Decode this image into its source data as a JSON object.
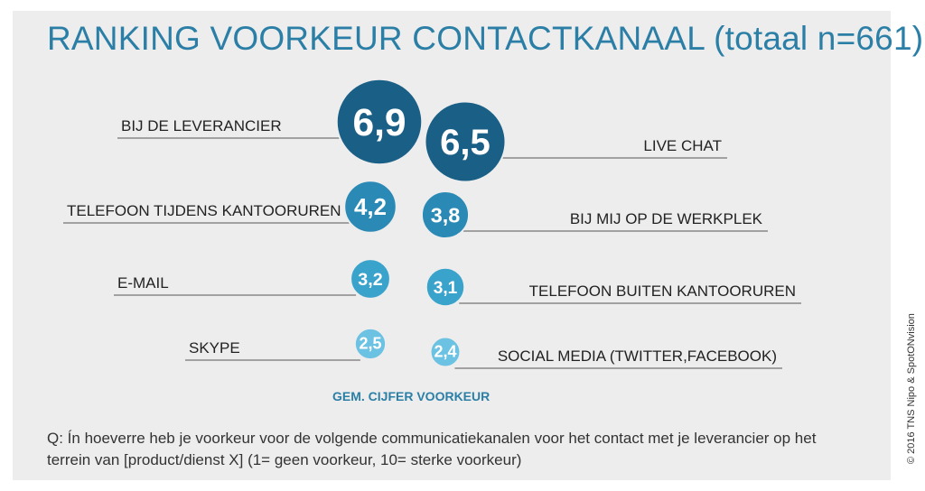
{
  "title": "RANKING VOORKEUR CONTACTKANAAL (totaal n=661)",
  "xlabel": "GEM. CIJFER VOORKEUR",
  "question": "Q: Ín hoeverre heb je voorkeur voor de volgende communicatiekanalen voor het contact met je leverancier op het terrein van [product/dienst X] (1= geen voorkeur, 10= sterke voorkeur)",
  "copyright": "© 2016 TNS Nipo & SpotONvision",
  "colors": {
    "dark": "#1a5f86",
    "medium": "#2b8ab5",
    "mid_light": "#3aa3cc",
    "light": "#6cc2e3",
    "title": "#2b7fa6"
  },
  "chart_data": {
    "type": "bubble",
    "title": "RANKING VOORKEUR CONTACTKANAAL (totaal n=661)",
    "xlabel": "GEM. CIJFER VOORKEUR",
    "scale": "1= geen voorkeur, 10= sterke voorkeur",
    "rows": [
      {
        "left": {
          "label": "BIJ DE LEVERANCIER",
          "value": 6.9,
          "display": "6,9"
        },
        "right": {
          "label": "LIVE CHAT",
          "value": 6.5,
          "display": "6,5"
        }
      },
      {
        "left": {
          "label": "TELEFOON TIJDENS KANTOORUREN",
          "value": 4.2,
          "display": "4,2"
        },
        "right": {
          "label": "BIJ MIJ OP DE WERKPLEK",
          "value": 3.8,
          "display": "3,8"
        }
      },
      {
        "left": {
          "label": "E-MAIL",
          "value": 3.2,
          "display": "3,2"
        },
        "right": {
          "label": "TELEFOON BUITEN KANTOORUREN",
          "value": 3.1,
          "display": "3,1"
        }
      },
      {
        "left": {
          "label": "SKYPE",
          "value": 2.5,
          "display": "2,5"
        },
        "right": {
          "label": "SOCIAL MEDIA (TWITTER,FACEBOOK)",
          "value": 2.4,
          "display": "2,4"
        }
      }
    ]
  }
}
